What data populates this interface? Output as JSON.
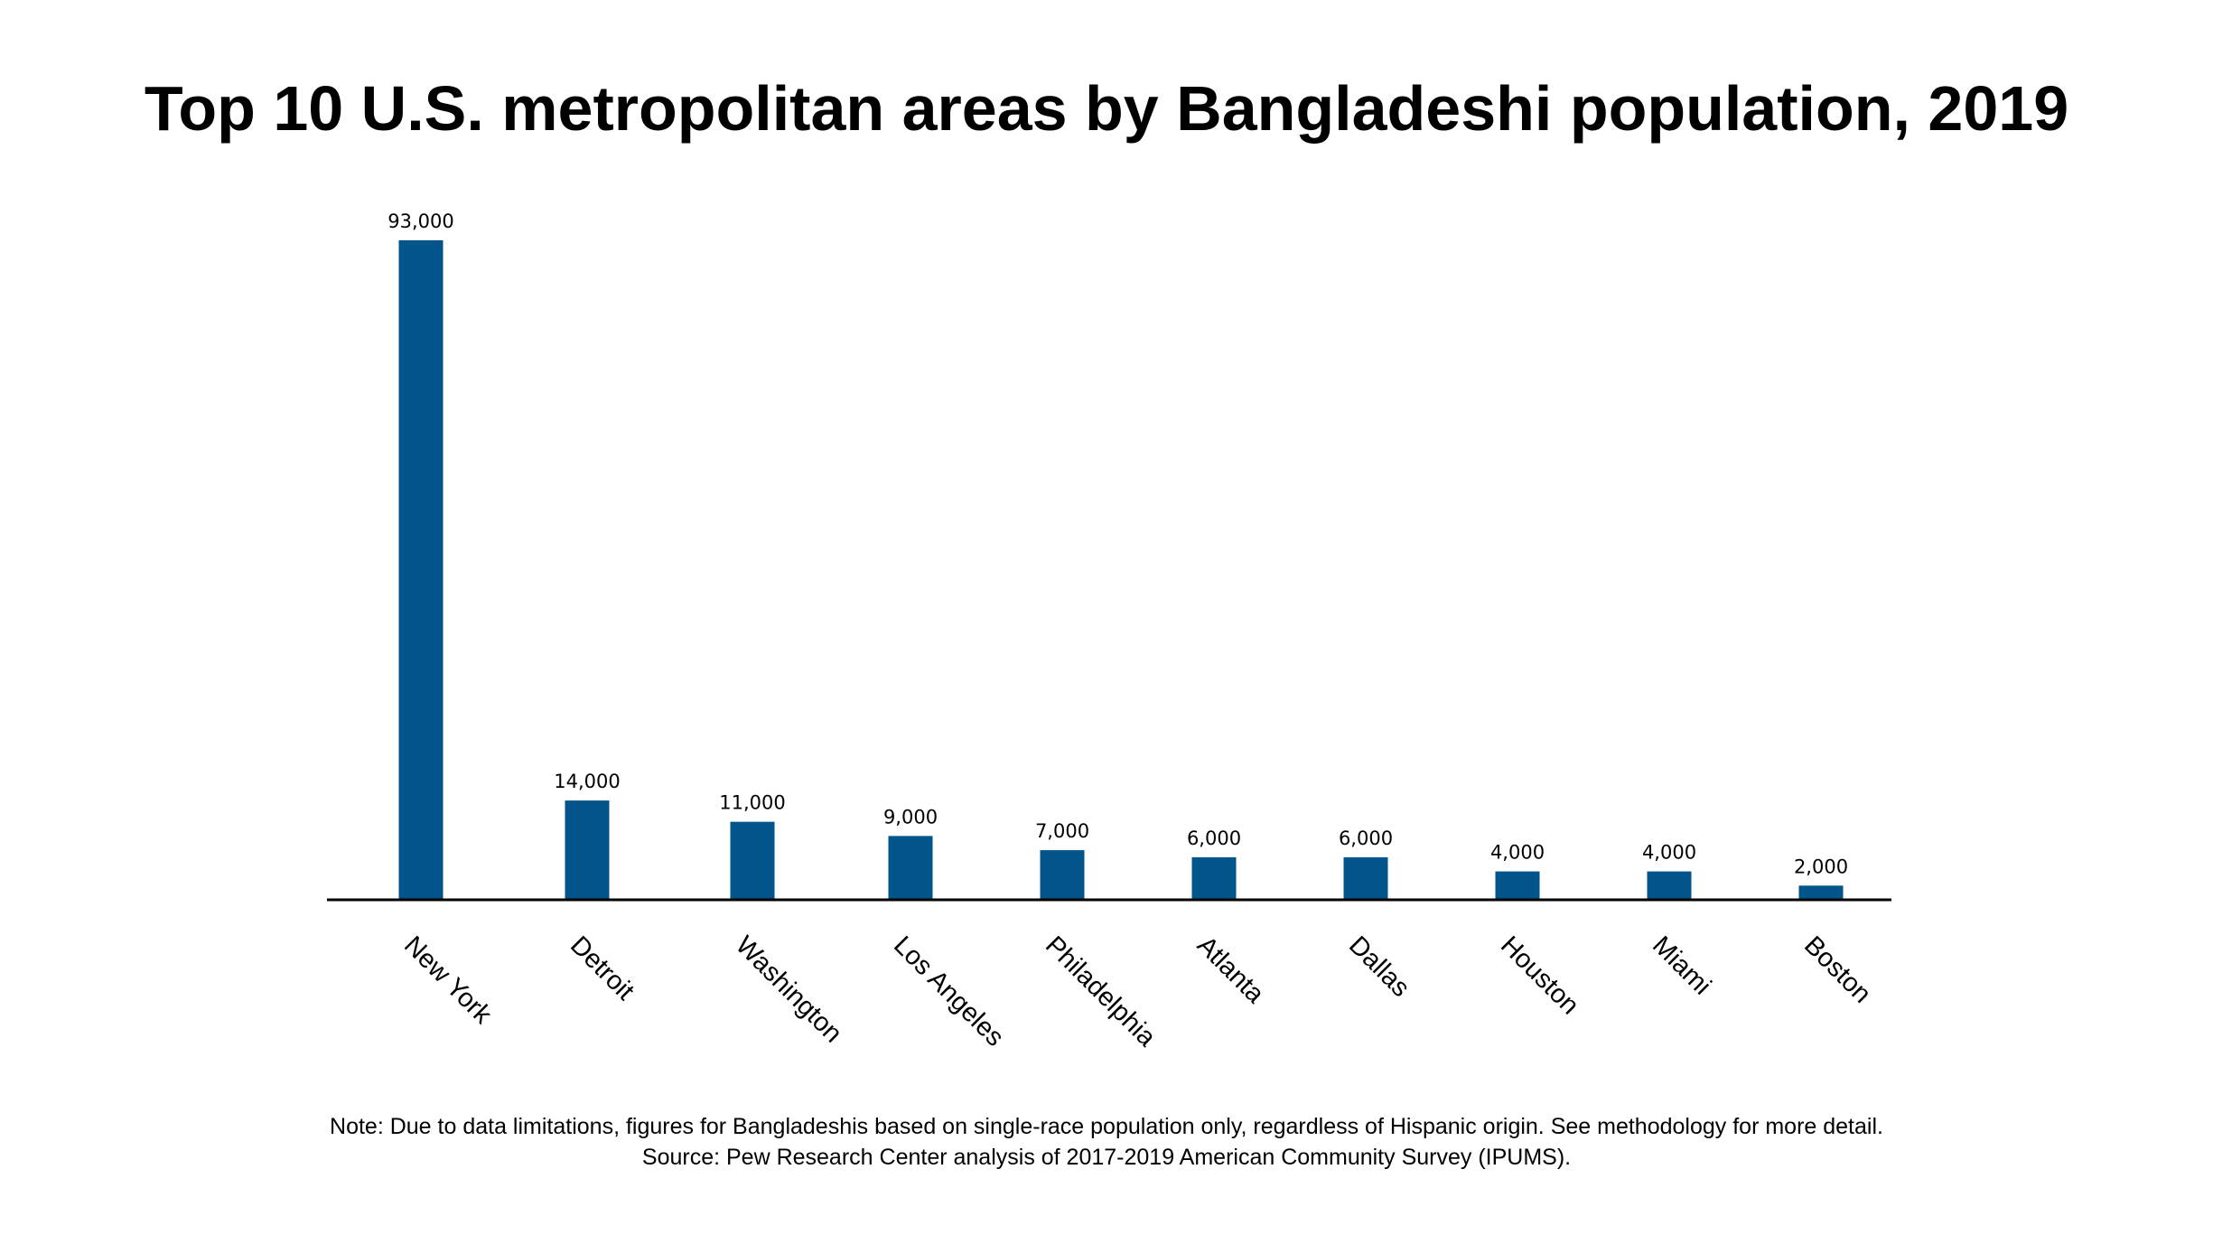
{
  "chart_data": {
    "type": "bar",
    "title": "Top 10 U.S. metropolitan areas by Bangladeshi population, 2019",
    "categories": [
      "New York",
      "Detroit",
      "Washington",
      "Los Angeles",
      "Philadelphia",
      "Atlanta",
      "Dallas",
      "Houston",
      "Miami",
      "Boston"
    ],
    "values": [
      93000,
      14000,
      11000,
      9000,
      7000,
      6000,
      6000,
      4000,
      4000,
      2000
    ],
    "value_labels": [
      "93,000",
      "14,000",
      "11,000",
      "9,000",
      "7,000",
      "6,000",
      "6,000",
      "4,000",
      "4,000",
      "2,000"
    ],
    "xlabel": "",
    "ylabel": "",
    "ylim": [
      0,
      93000
    ],
    "grid": false,
    "bar_color": "#02558b",
    "axis_color": "#000000"
  },
  "notes": {
    "note": "Note: Due to data limitations, figures for Bangladeshis based on single-race population only, regardless of Hispanic origin. See methodology for more detail.",
    "source": "Source: Pew Research Center analysis of 2017-2019 American Community Survey (IPUMS)."
  }
}
